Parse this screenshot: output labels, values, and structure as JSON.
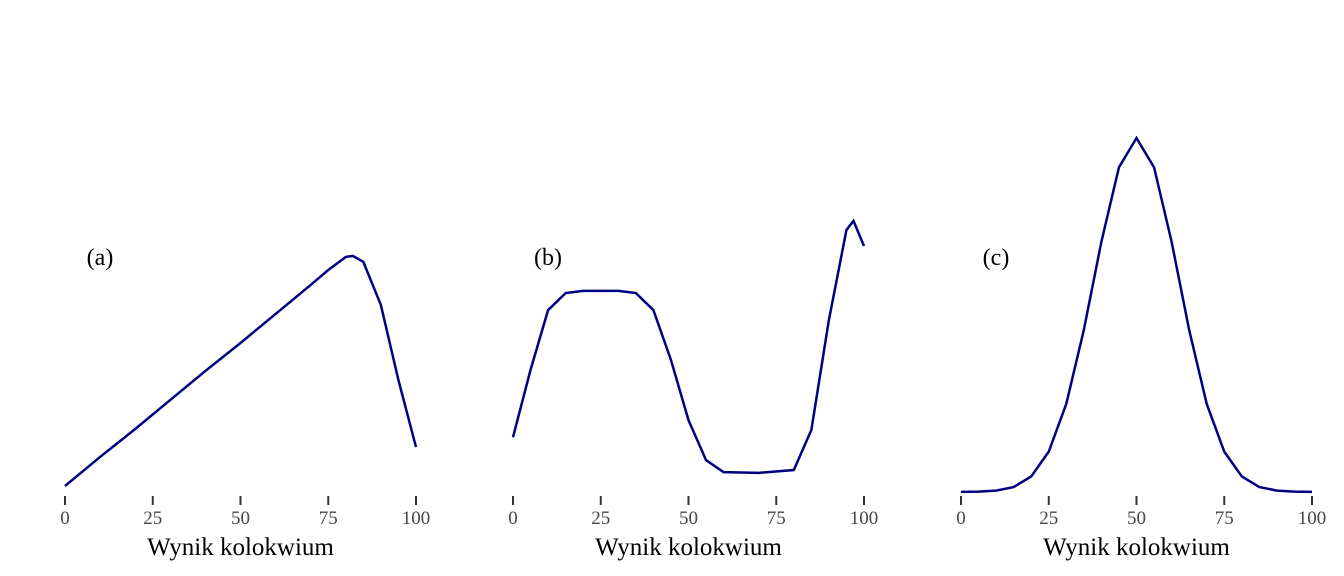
{
  "chart_data": [
    {
      "type": "line",
      "annotation": "(a)",
      "x_label": "Wynik kolokwium",
      "color": "#000080",
      "x": [
        0,
        10,
        20,
        30,
        40,
        50,
        60,
        70,
        75,
        80,
        82,
        85,
        90,
        95,
        100
      ],
      "values": [
        0.017,
        0.099,
        0.178,
        0.26,
        0.342,
        0.421,
        0.503,
        0.585,
        0.627,
        0.664,
        0.667,
        0.65,
        0.528,
        0.316,
        0.127
      ],
      "xlim": [
        0,
        100
      ],
      "xticks": [
        0,
        25,
        50,
        75,
        100
      ],
      "ylim": [
        0,
        1
      ]
    },
    {
      "type": "line",
      "annotation": "(b)",
      "x_label": "Wynik kolokwium",
      "color": "#000080",
      "x": [
        0,
        5,
        10,
        15,
        20,
        30,
        35,
        40,
        45,
        50,
        55,
        60,
        70,
        80,
        85,
        90,
        95,
        97,
        100
      ],
      "values": [
        0.155,
        0.345,
        0.514,
        0.562,
        0.568,
        0.568,
        0.562,
        0.514,
        0.373,
        0.203,
        0.09,
        0.056,
        0.054,
        0.062,
        0.175,
        0.486,
        0.74,
        0.766,
        0.695
      ],
      "xlim": [
        0,
        100
      ],
      "xticks": [
        0,
        25,
        50,
        75,
        100
      ],
      "ylim": [
        0,
        1
      ]
    },
    {
      "type": "line",
      "annotation": "(c)",
      "x_label": "Wynik kolokwium",
      "color": "#000080",
      "x": [
        0,
        5,
        10,
        15,
        20,
        25,
        30,
        35,
        40,
        45,
        50,
        55,
        60,
        65,
        70,
        75,
        80,
        85,
        90,
        95,
        100
      ],
      "values": [
        0.0002,
        0.0009,
        0.004,
        0.014,
        0.044,
        0.114,
        0.249,
        0.458,
        0.707,
        0.917,
        1,
        0.917,
        0.707,
        0.458,
        0.249,
        0.114,
        0.044,
        0.014,
        0.004,
        0.0009,
        0.0002
      ],
      "xlim": [
        0,
        100
      ],
      "xticks": [
        0,
        25,
        50,
        75,
        100
      ],
      "ylim": [
        0,
        1
      ]
    }
  ]
}
